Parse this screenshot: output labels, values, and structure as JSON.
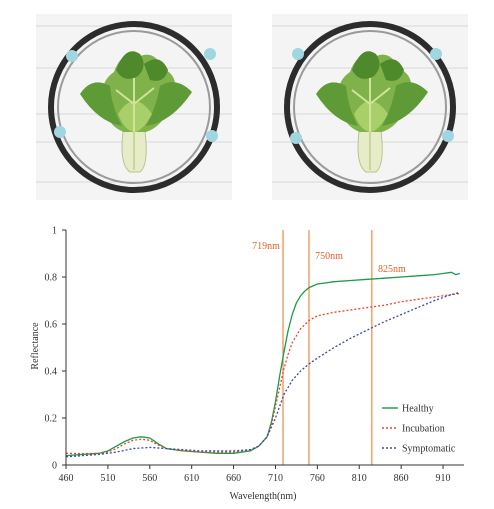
{
  "photos": [
    {
      "icon": "lettuce-in-ring-fixture-photo"
    },
    {
      "icon": "lettuce-in-ring-fixture-photo"
    }
  ],
  "colors": {
    "healthy": "#1a9a4a",
    "incubation": "#e8442c",
    "symptomatic": "#3a4aa8",
    "marker": "#ee8a45",
    "marker_text": "#e0622a",
    "axis": "#333333"
  },
  "chart_data": {
    "type": "line",
    "title": "",
    "xlabel": "Wavelength(nm)",
    "ylabel": "Reflectance",
    "xlim": [
      460,
      935
    ],
    "ylim": [
      0,
      1
    ],
    "xticks": [
      460,
      510,
      560,
      610,
      660,
      710,
      760,
      810,
      860,
      910
    ],
    "yticks": [
      0,
      0.2,
      0.4,
      0.6,
      0.8,
      1
    ],
    "ytick_labels": [
      "0",
      "0.2",
      "0.4",
      "0.6",
      "0.8",
      "1"
    ],
    "grid": false,
    "legend_position": "bottom-right",
    "markers": [
      {
        "x": 719,
        "label": "719nm"
      },
      {
        "x": 750,
        "label": "750nm"
      },
      {
        "x": 825,
        "label": "825nm"
      }
    ],
    "series": [
      {
        "name": "Healthy",
        "style": "solid",
        "x": [
          460,
          480,
          500,
          510,
          520,
          530,
          540,
          550,
          560,
          570,
          580,
          600,
          620,
          640,
          660,
          680,
          690,
          700,
          705,
          710,
          715,
          720,
          725,
          730,
          735,
          740,
          745,
          750,
          760,
          770,
          780,
          800,
          820,
          840,
          860,
          880,
          900,
          910,
          920,
          925,
          930
        ],
        "y": [
          0.04,
          0.045,
          0.05,
          0.06,
          0.08,
          0.1,
          0.115,
          0.12,
          0.115,
          0.09,
          0.07,
          0.06,
          0.055,
          0.05,
          0.05,
          0.06,
          0.08,
          0.12,
          0.18,
          0.27,
          0.38,
          0.48,
          0.57,
          0.64,
          0.69,
          0.72,
          0.74,
          0.755,
          0.77,
          0.775,
          0.78,
          0.785,
          0.79,
          0.795,
          0.8,
          0.805,
          0.81,
          0.815,
          0.82,
          0.81,
          0.815
        ]
      },
      {
        "name": "Incubation",
        "style": "dotted",
        "x": [
          460,
          480,
          500,
          510,
          520,
          530,
          540,
          550,
          560,
          570,
          580,
          600,
          620,
          640,
          660,
          680,
          690,
          700,
          705,
          710,
          715,
          720,
          725,
          730,
          740,
          750,
          760,
          780,
          800,
          820,
          840,
          860,
          880,
          900,
          920,
          930
        ],
        "y": [
          0.05,
          0.048,
          0.05,
          0.055,
          0.07,
          0.09,
          0.105,
          0.11,
          0.105,
          0.085,
          0.07,
          0.06,
          0.055,
          0.055,
          0.055,
          0.065,
          0.08,
          0.12,
          0.17,
          0.25,
          0.33,
          0.41,
          0.47,
          0.52,
          0.58,
          0.615,
          0.635,
          0.65,
          0.66,
          0.67,
          0.68,
          0.695,
          0.705,
          0.715,
          0.725,
          0.73
        ]
      },
      {
        "name": "Symptomatic",
        "style": "dotted",
        "x": [
          460,
          480,
          500,
          520,
          540,
          560,
          580,
          600,
          620,
          640,
          660,
          680,
          690,
          700,
          710,
          720,
          730,
          740,
          750,
          760,
          780,
          800,
          820,
          840,
          860,
          880,
          900,
          920,
          930
        ],
        "y": [
          0.035,
          0.04,
          0.045,
          0.055,
          0.07,
          0.075,
          0.07,
          0.065,
          0.06,
          0.06,
          0.06,
          0.065,
          0.08,
          0.12,
          0.2,
          0.3,
          0.36,
          0.4,
          0.43,
          0.455,
          0.5,
          0.54,
          0.575,
          0.61,
          0.64,
          0.67,
          0.7,
          0.725,
          0.735
        ]
      }
    ]
  }
}
